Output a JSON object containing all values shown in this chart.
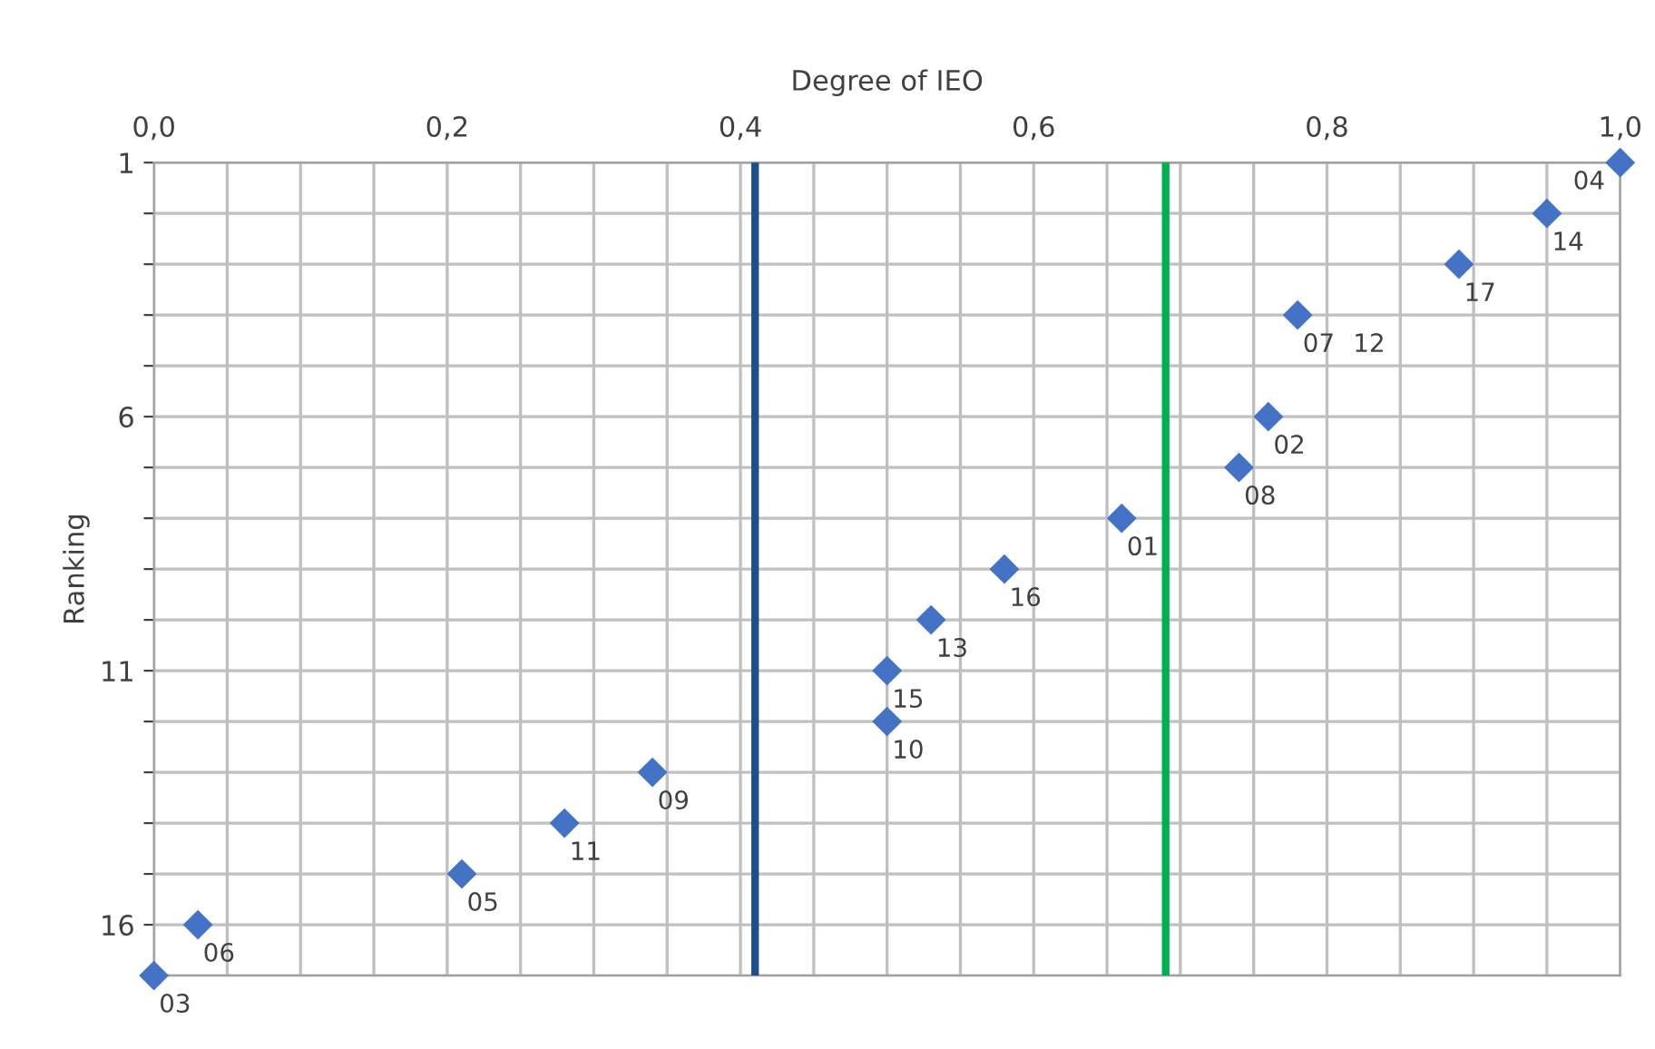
{
  "chart_data": {
    "type": "scatter",
    "xlabel": "Degree of IEO",
    "ylabel": "Ranking",
    "x": [
      1.0,
      0.95,
      0.89,
      0.78,
      0.76,
      0.74,
      0.66,
      0.58,
      0.53,
      0.5,
      0.5,
      0.34,
      0.28,
      0.21,
      0.03,
      0.0
    ],
    "values": [
      1,
      2,
      3,
      4,
      6,
      7,
      8,
      9,
      10,
      11,
      12,
      13,
      14,
      15,
      16,
      17
    ],
    "annotations": [
      {
        "text": "04",
        "x": 1.0,
        "y": 1
      },
      {
        "text": "14",
        "x": 0.95,
        "y": 2
      },
      {
        "text": "17",
        "x": 0.89,
        "y": 3
      },
      {
        "text": "07",
        "x": 0.78,
        "y": 4
      },
      {
        "text": "12",
        "x": 0.78,
        "y": 4
      },
      {
        "text": "02",
        "x": 0.76,
        "y": 6
      },
      {
        "text": "08",
        "x": 0.74,
        "y": 7
      },
      {
        "text": "01",
        "x": 0.66,
        "y": 8
      },
      {
        "text": "16",
        "x": 0.58,
        "y": 9
      },
      {
        "text": "13",
        "x": 0.53,
        "y": 10
      },
      {
        "text": "15",
        "x": 0.5,
        "y": 11
      },
      {
        "text": "10",
        "x": 0.5,
        "y": 12
      },
      {
        "text": "09",
        "x": 0.34,
        "y": 13
      },
      {
        "text": "11",
        "x": 0.28,
        "y": 14
      },
      {
        "text": "05",
        "x": 0.21,
        "y": 15
      },
      {
        "text": "06",
        "x": 0.03,
        "y": 16
      },
      {
        "text": "03",
        "x": 0.0,
        "y": 17
      }
    ],
    "color": "#4472c4",
    "marker": "diamond",
    "xlim": [
      0,
      1
    ],
    "xticks": [
      {
        "value": 0,
        "label": "0,0"
      },
      {
        "value": 0.05,
        "label": null
      },
      {
        "value": 0.1,
        "label": null
      },
      {
        "value": 0.15,
        "label": null
      },
      {
        "value": 0.2,
        "label": "0,2"
      },
      {
        "value": 0.25,
        "label": null
      },
      {
        "value": 0.3,
        "label": null
      },
      {
        "value": 0.35,
        "label": null
      },
      {
        "value": 0.4,
        "label": "0,4"
      },
      {
        "value": 0.45,
        "label": null
      },
      {
        "value": 0.5,
        "label": null
      },
      {
        "value": 0.55,
        "label": null
      },
      {
        "value": 0.6,
        "label": "0,6"
      },
      {
        "value": 0.65,
        "label": null
      },
      {
        "value": 0.7,
        "label": null
      },
      {
        "value": 0.75,
        "label": null
      },
      {
        "value": 0.8,
        "label": "0,8"
      },
      {
        "value": 0.85,
        "label": null
      },
      {
        "value": 0.9,
        "label": null
      },
      {
        "value": 0.95,
        "label": null
      },
      {
        "value": 1,
        "label": "1,0"
      }
    ],
    "ylim": [
      17,
      1
    ],
    "yticks": [
      1,
      {
        "value": 2,
        "label": null
      },
      {
        "value": 3,
        "label": null
      },
      {
        "value": 4,
        "label": null
      },
      {
        "value": 5,
        "label": null
      },
      6,
      {
        "value": 7,
        "label": null
      },
      {
        "value": 8,
        "label": null
      },
      {
        "value": 9,
        "label": null
      },
      {
        "value": 10,
        "label": null
      },
      11,
      {
        "value": 12,
        "label": null
      },
      {
        "value": 13,
        "label": null
      },
      {
        "value": 14,
        "label": null
      },
      {
        "value": 15,
        "label": null
      },
      16,
      {
        "value": 17,
        "label": null
      }
    ],
    "grid": true,
    "ref_lines": [
      {
        "axis": "x",
        "value": 0.41,
        "color": "#1f4e8c"
      },
      {
        "axis": "x",
        "value": 0.69,
        "color": "#00b050"
      }
    ]
  }
}
